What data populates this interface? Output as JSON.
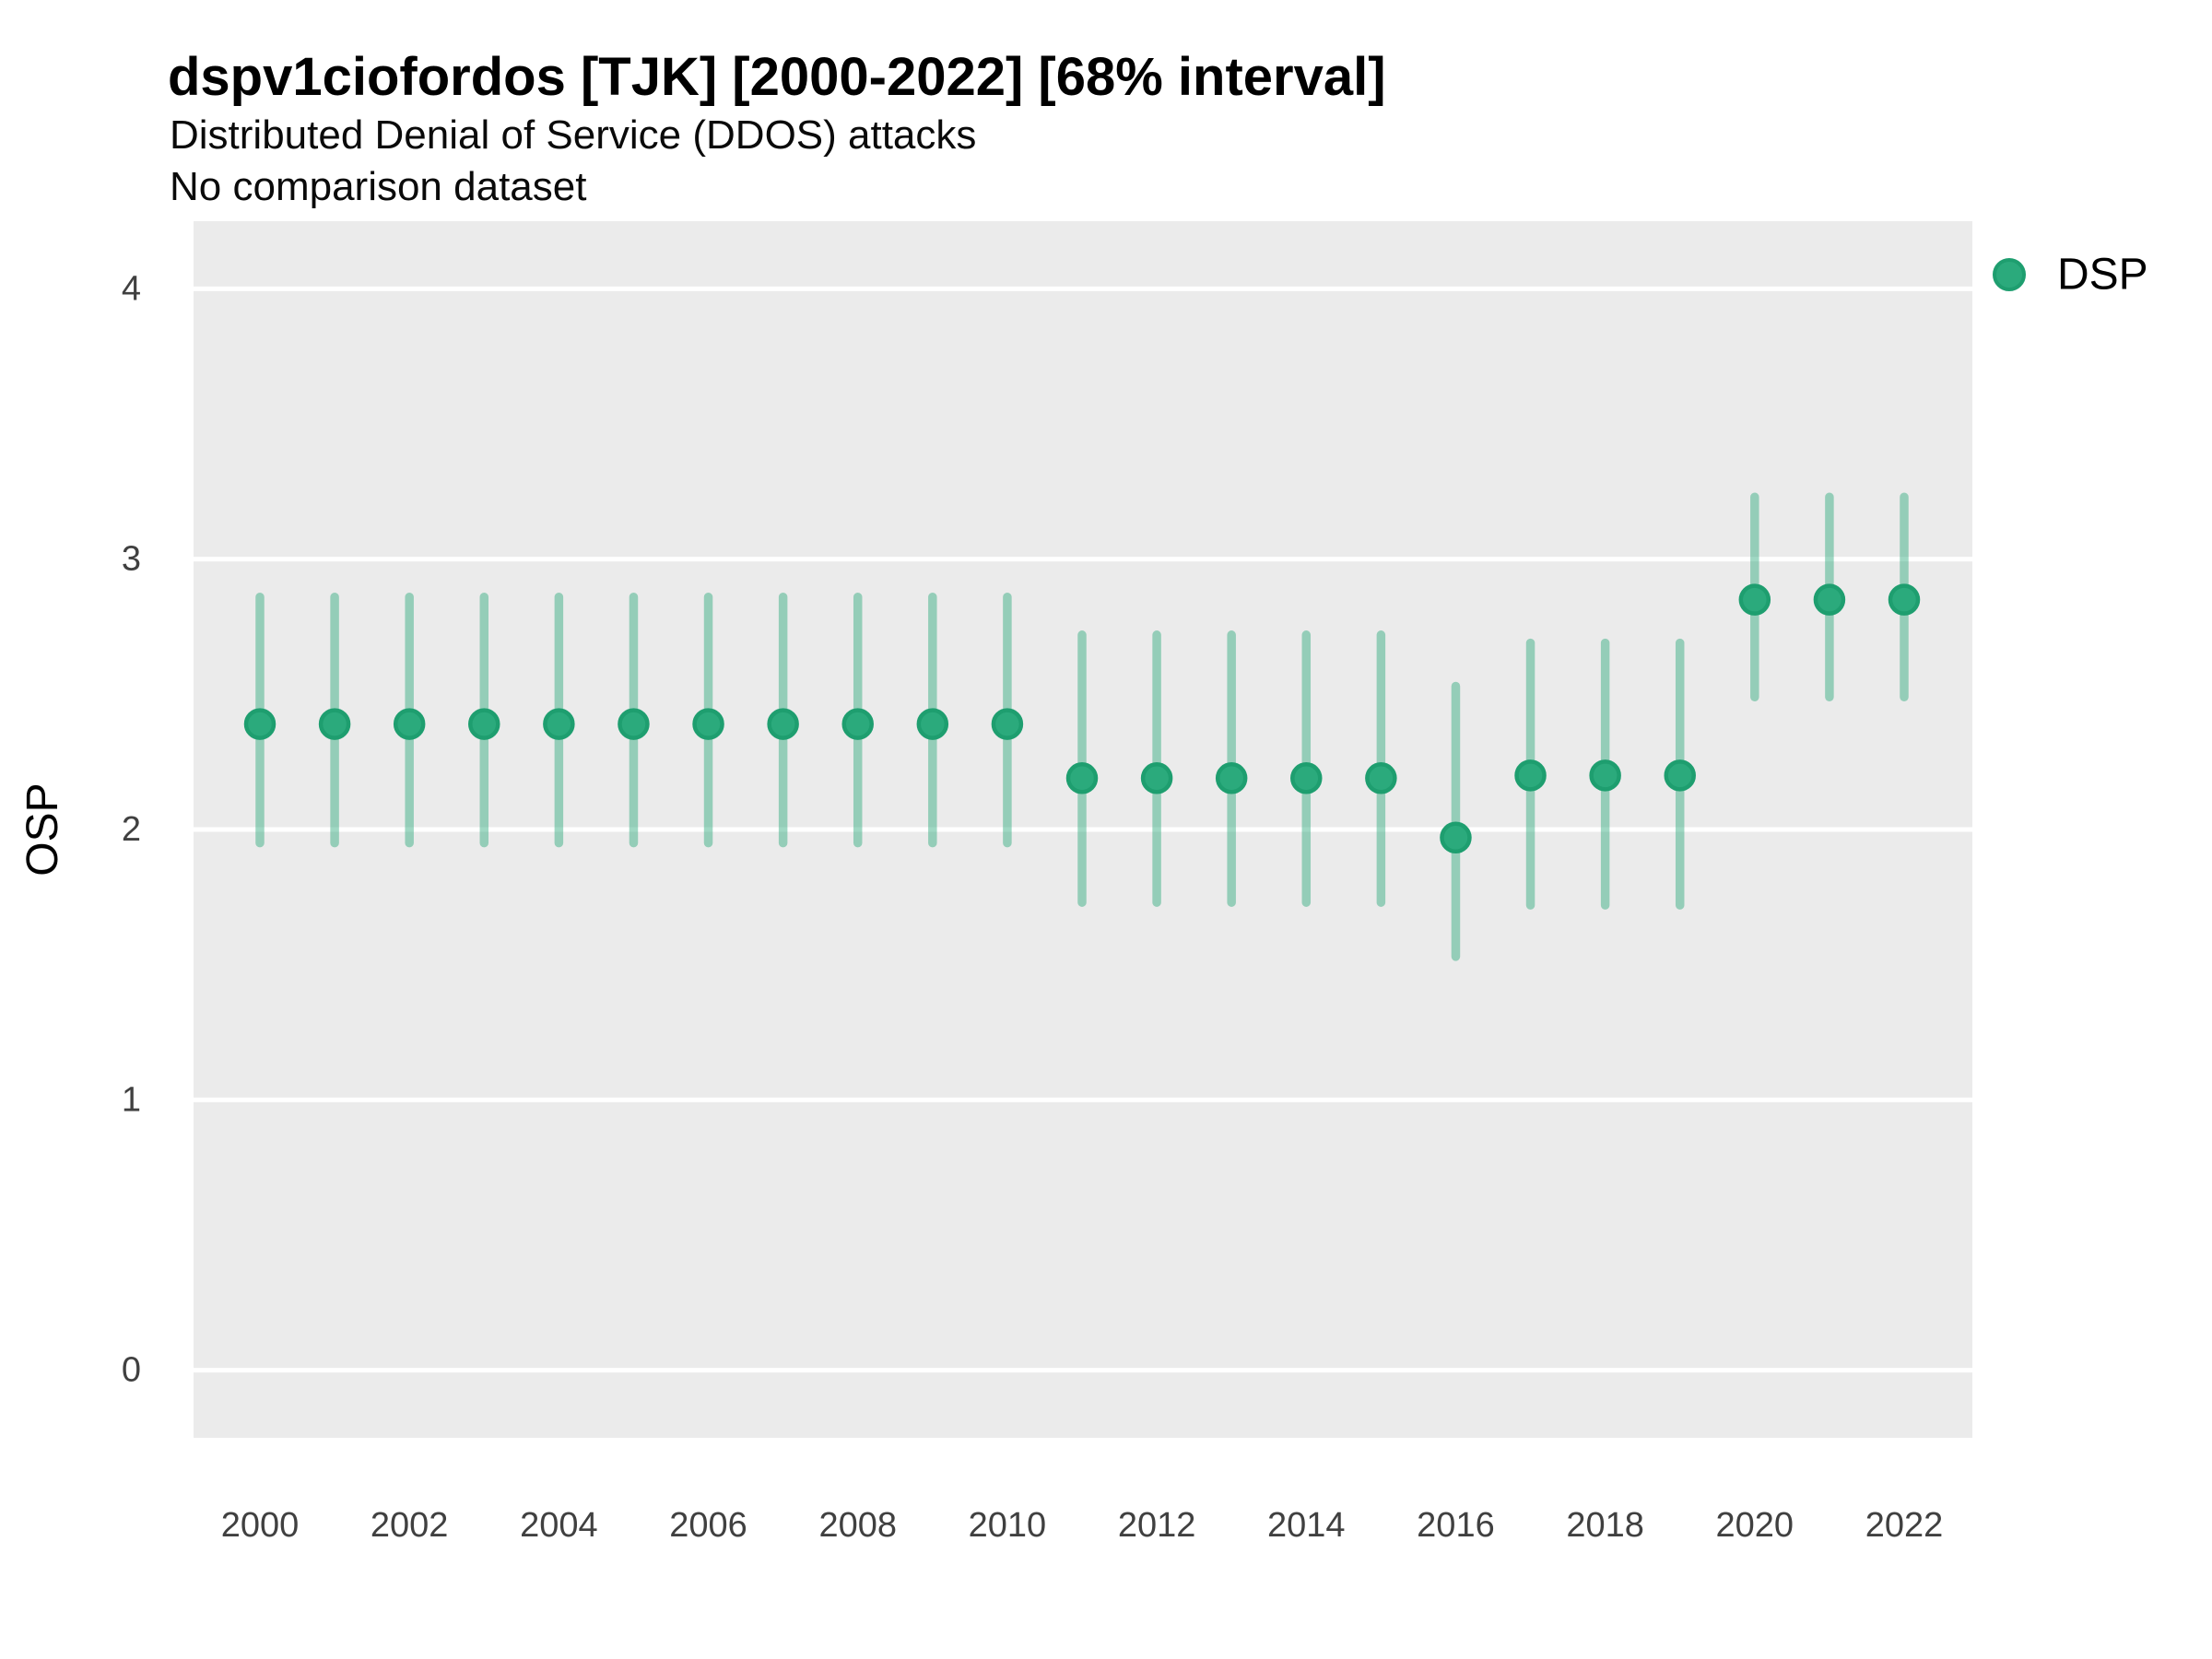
{
  "header": {
    "title": "dspv1ciofordos [TJK] [2000-2022] [68% interval]",
    "subtitle": "Distributed Denial of Service (DDOS) attacks",
    "note": "No comparison dataset"
  },
  "legend": {
    "items": [
      {
        "label": "DSP",
        "color": "#2BAA7C"
      }
    ]
  },
  "colors": {
    "point_fill": "#2BAA7C",
    "point_stroke": "#1E9E6F",
    "interval_bar": "rgba(43,168,123,0.45)",
    "panel_bg": "#EBEBEB",
    "gridline": "#FFFFFF",
    "tick_text": "#404040",
    "axis_title_text": "#000000"
  },
  "chart_data": {
    "type": "scatter",
    "variant": "pointrange",
    "title": "dspv1ciofordos [TJK] [2000-2022] [68% interval]",
    "subtitle": "Distributed Denial of Service (DDOS) attacks",
    "note": "No comparison dataset",
    "interval_level": "68%",
    "xlabel": "",
    "ylabel": "OSP",
    "ylim": [
      -0.25,
      4.25
    ],
    "y_ticks": [
      0,
      1,
      2,
      3,
      4
    ],
    "x_ticks": [
      2000,
      2002,
      2004,
      2006,
      2008,
      2010,
      2012,
      2014,
      2016,
      2018,
      2020,
      2022
    ],
    "grid": "horizontal-major-only",
    "legend_position": "right-top",
    "series": [
      {
        "name": "DSP",
        "x": [
          2000,
          2001,
          2002,
          2003,
          2004,
          2005,
          2006,
          2007,
          2008,
          2009,
          2010,
          2011,
          2012,
          2013,
          2014,
          2015,
          2016,
          2017,
          2018,
          2019,
          2020,
          2021,
          2022
        ],
        "mid": [
          2.39,
          2.39,
          2.39,
          2.39,
          2.39,
          2.39,
          2.39,
          2.39,
          2.39,
          2.39,
          2.39,
          2.19,
          2.19,
          2.19,
          2.19,
          2.19,
          1.97,
          2.2,
          2.2,
          2.2,
          2.85,
          2.85,
          2.85
        ],
        "lo": [
          1.95,
          1.95,
          1.95,
          1.95,
          1.95,
          1.95,
          1.95,
          1.95,
          1.95,
          1.95,
          1.95,
          1.73,
          1.73,
          1.73,
          1.73,
          1.73,
          1.53,
          1.72,
          1.72,
          1.72,
          2.49,
          2.49,
          2.49
        ],
        "hi": [
          2.86,
          2.86,
          2.86,
          2.86,
          2.86,
          2.86,
          2.86,
          2.86,
          2.86,
          2.86,
          2.86,
          2.72,
          2.72,
          2.72,
          2.72,
          2.72,
          2.53,
          2.69,
          2.69,
          2.69,
          3.23,
          3.23,
          3.23
        ]
      }
    ]
  }
}
